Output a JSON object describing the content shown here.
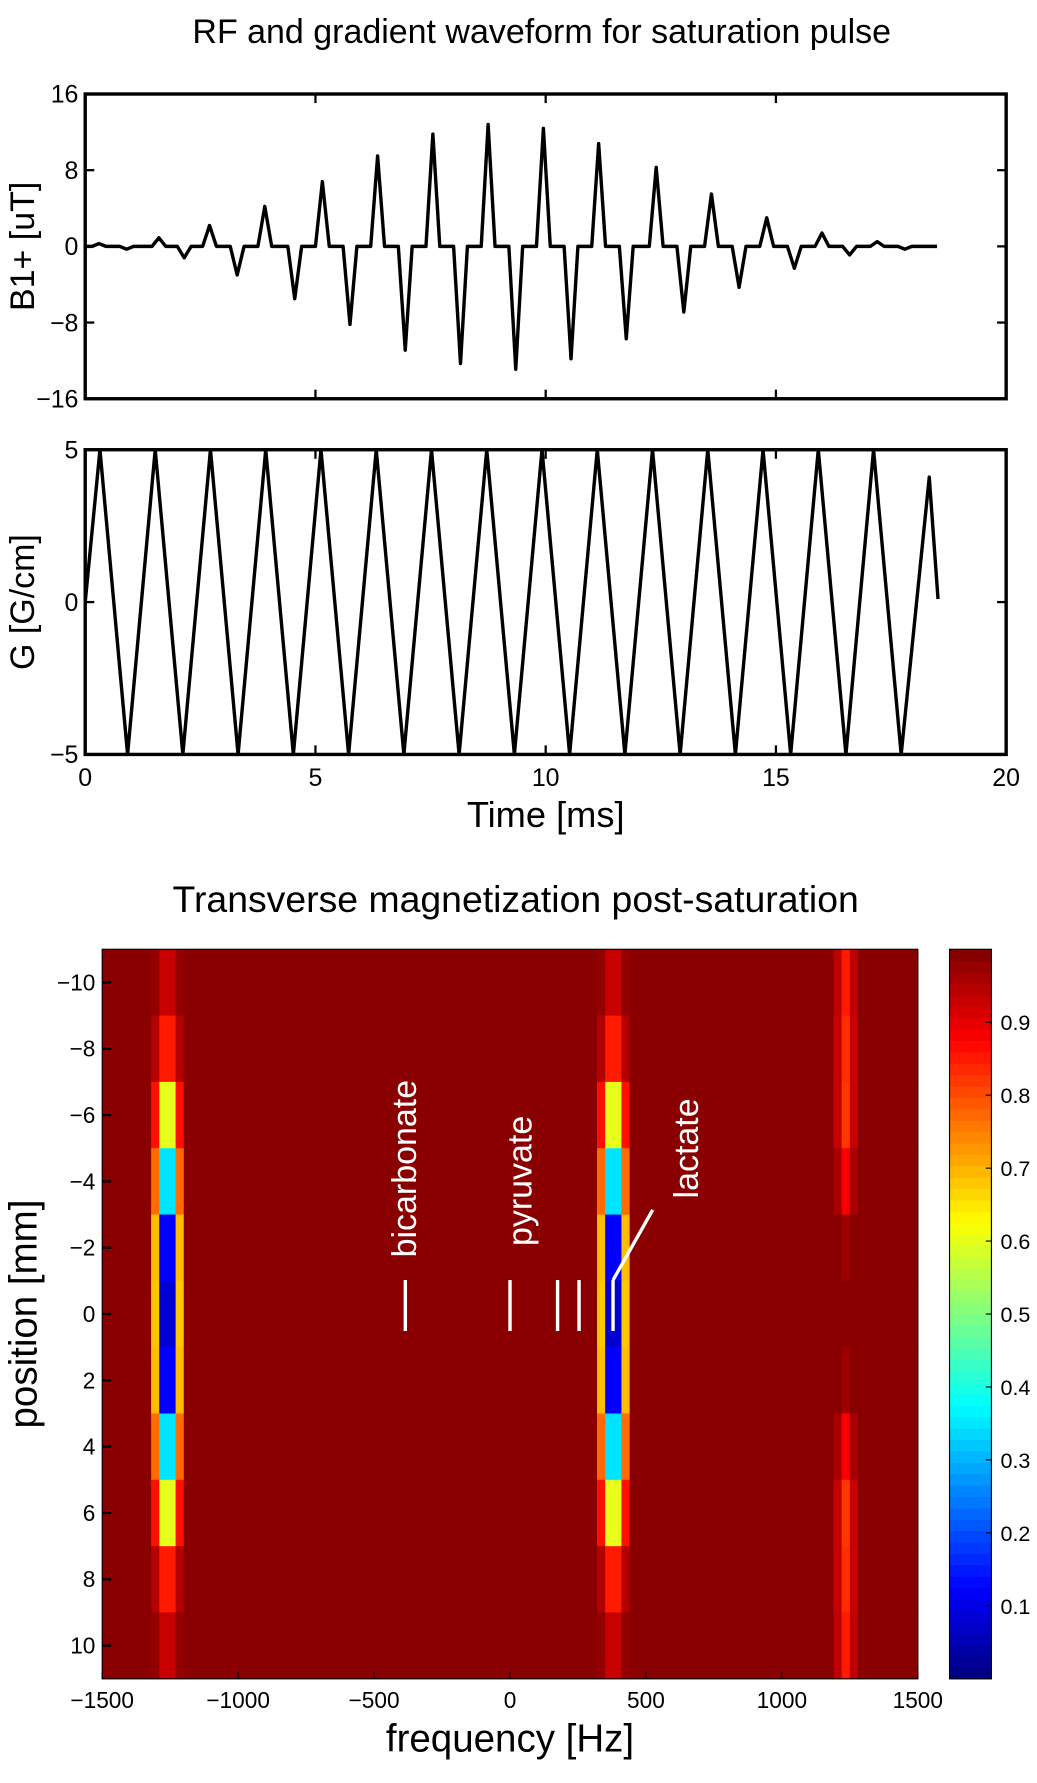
{
  "chart_data": [
    {
      "type": "line",
      "title": "RF and gradient waveform for saturation pulse",
      "ylabel": "B1+ [uT]",
      "xlim": [
        0,
        20
      ],
      "xticks": [
        0,
        5,
        10,
        15,
        20
      ],
      "xticklabels": false,
      "ylim": [
        -16,
        16
      ],
      "yticks": [
        16,
        8,
        0,
        {
          "value": -8,
          "label": "−8"
        },
        {
          "value": -16,
          "label": "−16"
        }
      ],
      "x": [
        0,
        0.15,
        0.3,
        0.45,
        0.75,
        0.9,
        1.05,
        1.45,
        1.6,
        1.75,
        2.0,
        2.15,
        2.3,
        2.55,
        2.7,
        2.85,
        3.15,
        3.3,
        3.45,
        3.75,
        3.9,
        4.05,
        4.4,
        4.55,
        4.7,
        5.0,
        5.15,
        5.3,
        5.6,
        5.75,
        5.9,
        6.2,
        6.35,
        6.5,
        6.8,
        6.95,
        7.1,
        7.4,
        7.55,
        7.7,
        8.0,
        8.15,
        8.3,
        8.6,
        8.75,
        8.9,
        9.2,
        9.35,
        9.5,
        9.8,
        9.95,
        10.1,
        10.4,
        10.55,
        10.7,
        11.0,
        11.15,
        11.3,
        11.6,
        11.75,
        11.9,
        12.25,
        12.4,
        12.55,
        12.85,
        13.0,
        13.15,
        13.45,
        13.6,
        13.75,
        14.05,
        14.2,
        14.35,
        14.65,
        14.8,
        14.95,
        15.25,
        15.4,
        15.55,
        15.85,
        16.0,
        16.15,
        16.45,
        16.6,
        16.75,
        17.05,
        17.2,
        17.35,
        17.65,
        17.8,
        17.95,
        18.5
      ],
      "series": [
        {
          "color": "#000000",
          "values": [
            0,
            0,
            0.3,
            0,
            0,
            -0.3,
            0,
            0,
            0.9,
            0,
            0,
            -1.2,
            0,
            0,
            2.2,
            0,
            0,
            -3,
            0,
            0,
            4.2,
            0,
            0,
            -5.5,
            0,
            0,
            6.8,
            0,
            0,
            -8.2,
            0,
            0,
            9.5,
            0,
            0,
            -10.9,
            0,
            0,
            11.8,
            0,
            0,
            -12.3,
            0,
            0,
            12.8,
            0,
            0,
            -12.9,
            0,
            0,
            12.4,
            0,
            0,
            -11.8,
            0,
            0,
            10.8,
            0,
            0,
            -9.7,
            0,
            0,
            8.3,
            0,
            0,
            -6.9,
            0,
            0,
            5.5,
            0,
            0,
            -4.3,
            0,
            0,
            3,
            0,
            0,
            -2.3,
            0,
            0,
            1.4,
            0,
            0,
            -0.9,
            0,
            0,
            0.5,
            0,
            0,
            -0.3,
            0,
            0
          ]
        }
      ]
    },
    {
      "type": "line",
      "xlabel": "Time [ms]",
      "ylabel": "G [G/cm]",
      "xlim": [
        0,
        20
      ],
      "xticks": [
        0,
        5,
        10,
        15,
        20
      ],
      "xticklabels": true,
      "ylim": [
        -5,
        5
      ],
      "yticks": [
        5,
        0,
        {
          "value": -5,
          "label": "−5"
        }
      ],
      "x": [
        0,
        0.32,
        0.92,
        1.52,
        2.12,
        2.72,
        3.32,
        3.92,
        4.52,
        5.12,
        5.72,
        6.32,
        6.92,
        7.52,
        8.12,
        8.72,
        9.32,
        9.92,
        10.52,
        11.12,
        11.72,
        12.32,
        12.92,
        13.52,
        14.12,
        14.72,
        15.32,
        15.92,
        16.52,
        17.12,
        17.72,
        18.33,
        18.52
      ],
      "series": [
        {
          "color": "#000000",
          "values": [
            0,
            5,
            -5,
            5,
            -5,
            5,
            -5,
            5,
            -5,
            5,
            -5,
            5,
            -5,
            5,
            -5,
            5,
            -5,
            5,
            -5,
            5,
            -5,
            5,
            -5,
            5,
            -5,
            5,
            -5,
            5,
            -5,
            5,
            -5,
            4.1,
            0.1
          ]
        }
      ]
    },
    {
      "type": "heatmap",
      "title": "Transverse magnetization post-saturation",
      "xlabel": "frequency [Hz]",
      "ylabel": "position [mm]",
      "colormap": "jet",
      "clim": [
        0,
        1
      ],
      "cticks": [
        0.1,
        0.2,
        0.3,
        0.4,
        0.5,
        0.6,
        0.7,
        0.8,
        0.9
      ],
      "xlim": [
        -1500,
        1500
      ],
      "xticks": [
        {
          "value": -1500,
          "label": "−1500"
        },
        {
          "value": -1000,
          "label": "−1000"
        },
        {
          "value": -500,
          "label": "−500"
        },
        0,
        500,
        1000,
        1500
      ],
      "ylim": [
        11,
        -11
      ],
      "yticks": [
        {
          "value": -10,
          "label": "−10"
        },
        {
          "value": -8,
          "label": "−8"
        },
        {
          "value": -6,
          "label": "−6"
        },
        {
          "value": -4,
          "label": "−4"
        },
        {
          "value": -2,
          "label": "−2"
        },
        0,
        2,
        4,
        6,
        8,
        10
      ],
      "x_edges": [
        -1500,
        -1320,
        -1290,
        -1260,
        -1230,
        -1200,
        320,
        350,
        380,
        410,
        440,
        1190,
        1220,
        1250,
        1280,
        1500
      ],
      "y_edges": [
        -11,
        -9,
        -7,
        -5,
        -3,
        -1,
        1,
        3,
        5,
        7,
        9,
        11
      ],
      "z": [
        [
          0.99,
          0.98,
          0.93,
          0.93,
          0.98,
          0.99,
          0.98,
          0.93,
          0.93,
          0.98,
          0.99,
          0.94,
          0.85,
          0.94,
          0.99
        ],
        [
          0.99,
          0.95,
          0.85,
          0.85,
          0.95,
          0.99,
          0.95,
          0.85,
          0.85,
          0.95,
          0.99,
          0.93,
          0.83,
          0.93,
          0.99
        ],
        [
          0.99,
          0.86,
          0.6,
          0.6,
          0.86,
          0.99,
          0.86,
          0.6,
          0.6,
          0.86,
          0.99,
          0.93,
          0.82,
          0.93,
          0.99
        ],
        [
          0.99,
          0.77,
          0.35,
          0.35,
          0.77,
          0.99,
          0.77,
          0.35,
          0.35,
          0.77,
          0.99,
          0.96,
          0.88,
          0.96,
          0.99
        ],
        [
          0.99,
          0.69,
          0.12,
          0.12,
          0.69,
          0.99,
          0.69,
          0.12,
          0.12,
          0.69,
          0.99,
          0.99,
          0.97,
          0.99,
          0.99
        ],
        [
          0.99,
          0.68,
          0.08,
          0.08,
          0.68,
          0.99,
          0.68,
          0.08,
          0.08,
          0.68,
          0.99,
          0.99,
          0.99,
          0.99,
          0.99
        ],
        [
          0.99,
          0.69,
          0.12,
          0.12,
          0.69,
          0.99,
          0.69,
          0.12,
          0.12,
          0.69,
          0.99,
          0.99,
          0.97,
          0.99,
          0.99
        ],
        [
          0.99,
          0.77,
          0.35,
          0.35,
          0.77,
          0.99,
          0.77,
          0.35,
          0.35,
          0.77,
          0.99,
          0.96,
          0.88,
          0.96,
          0.99
        ],
        [
          0.99,
          0.86,
          0.6,
          0.6,
          0.86,
          0.99,
          0.86,
          0.6,
          0.6,
          0.86,
          0.99,
          0.93,
          0.82,
          0.93,
          0.99
        ],
        [
          0.99,
          0.95,
          0.85,
          0.85,
          0.95,
          0.99,
          0.95,
          0.85,
          0.85,
          0.95,
          0.99,
          0.93,
          0.83,
          0.93,
          0.99
        ],
        [
          0.99,
          0.98,
          0.93,
          0.93,
          0.98,
          0.99,
          0.98,
          0.93,
          0.93,
          0.98,
          0.99,
          0.94,
          0.85,
          0.94,
          0.99
        ]
      ],
      "markers": [
        {
          "x": -385,
          "label": "bicarbonate"
        },
        {
          "x": 0,
          "label": "pyruvate"
        },
        {
          "x": 175
        },
        {
          "x": 254
        },
        {
          "x": 379,
          "label": "lactate"
        }
      ]
    }
  ]
}
